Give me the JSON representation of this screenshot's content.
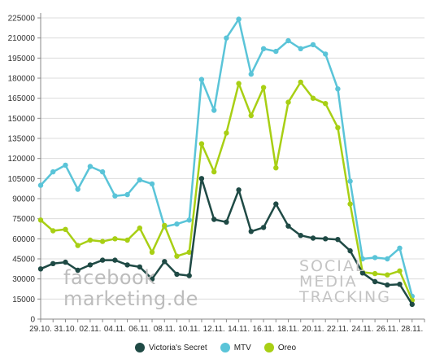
{
  "chart_data": {
    "type": "line",
    "title": "",
    "xlabel": "",
    "ylabel": "",
    "ylim": [
      0,
      225000
    ],
    "yticks": [
      0,
      15000,
      30000,
      45000,
      60000,
      75000,
      90000,
      105000,
      120000,
      135000,
      150000,
      165000,
      180000,
      195000,
      210000,
      225000
    ],
    "ytick_labels": [
      "0",
      "15000",
      "30000",
      "45000",
      "60000",
      "75000",
      "90000",
      "105000",
      "120000",
      "135000",
      "150000",
      "165000",
      "180000",
      "195000",
      "210000",
      "225000"
    ],
    "x": [
      "29.10.",
      "30.10.",
      "31.10.",
      "01.11.",
      "02.11.",
      "03.11.",
      "04.11.",
      "05.11.",
      "06.11.",
      "07.11.",
      "08.11.",
      "09.11.",
      "10.11.",
      "11.11.",
      "12.11.",
      "13.11.",
      "14.11.",
      "15.11.",
      "16.11.",
      "17.11.",
      "18.11.",
      "19.11.",
      "20.11.",
      "21.11.",
      "22.11.",
      "23.11.",
      "24.11.",
      "25.11.",
      "26.11.",
      "27.11.",
      "28.11.",
      "29.11."
    ],
    "xtick_labels": [
      "29.10.",
      "31.10.",
      "02.11.",
      "04.11.",
      "06.11.",
      "08.11.",
      "10.11.",
      "12.11.",
      "14.11.",
      "16.11.",
      "18.11.",
      "20.11.",
      "22.11.",
      "24.11.",
      "26.11.",
      "28.11."
    ],
    "grid": "horizontal",
    "legend_position": "bottom",
    "series": [
      {
        "name": "Victoria's Secret",
        "color": "#1f4a45",
        "values": [
          37500,
          41500,
          42500,
          36500,
          40500,
          44000,
          44000,
          40500,
          39000,
          30000,
          43000,
          33500,
          32500,
          105000,
          74500,
          72500,
          96500,
          65500,
          68500,
          86000,
          69500,
          62500,
          60500,
          60000,
          59500,
          51000,
          34500,
          28000,
          25500,
          26000,
          11000,
          null
        ]
      },
      {
        "name": "MTV",
        "color": "#5ac4d8",
        "values": [
          100000,
          110000,
          115000,
          97000,
          114000,
          110000,
          92000,
          93000,
          104000,
          101000,
          69000,
          71000,
          74000,
          179000,
          156000,
          210000,
          224000,
          183000,
          202000,
          200000,
          208000,
          202000,
          205000,
          198000,
          172000,
          103000,
          45000,
          46000,
          45000,
          53000,
          17000,
          null
        ]
      },
      {
        "name": "Oreo",
        "color": "#a8cf14",
        "values": [
          74000,
          66000,
          67000,
          55000,
          59000,
          58000,
          60000,
          59000,
          68000,
          50000,
          70000,
          47000,
          50000,
          131000,
          110000,
          139000,
          176000,
          152000,
          173000,
          113000,
          162000,
          177000,
          165000,
          161000,
          143000,
          86000,
          35000,
          34000,
          33000,
          36000,
          14000,
          null
        ]
      }
    ]
  },
  "watermarks": {
    "left_line1": "facebook",
    "left_line2": "marketing.de",
    "right_line1": "SOCIAL",
    "right_line2": "MEDIA",
    "right_line3": "TRACKING"
  }
}
